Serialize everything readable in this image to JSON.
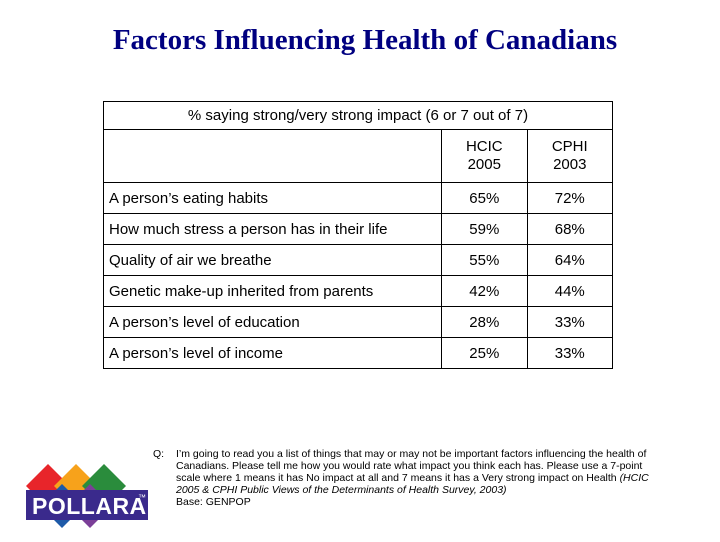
{
  "title": "Factors Influencing Health of Canadians",
  "table": {
    "caption": "% saying strong/very strong impact (6 or 7 out of 7)",
    "columns": [
      {
        "line1": "HCIC",
        "line2": "2005"
      },
      {
        "line1": "CPHI",
        "line2": "2003"
      }
    ],
    "rows": [
      {
        "label": "A person’s eating habits",
        "hcic": "65%",
        "cphi": "72%"
      },
      {
        "label": "How much stress a person has in their life",
        "hcic": "59%",
        "cphi": "68%"
      },
      {
        "label": "Quality of air we breathe",
        "hcic": "55%",
        "cphi": "64%"
      },
      {
        "label": "Genetic make-up inherited from parents",
        "hcic": "42%",
        "cphi": "44%"
      },
      {
        "label": "A person’s level of education",
        "hcic": "28%",
        "cphi": "33%"
      },
      {
        "label": "A person’s level of income",
        "hcic": "25%",
        "cphi": "33%"
      }
    ]
  },
  "footnote": {
    "q_label": "Q:",
    "text": "I’m going to read you a list of things that may or may not be important factors influencing the health of Canadians.  Please tell me how you would rate what impact you think each has.  Please use a 7-point scale where 1 means it has No impact at all and 7 means it has a Very strong impact on Health ",
    "source": "(HCIC 2005 & CPHI Public Views of the Determinants of Health Survey, 2003)",
    "base": "Base: GENPOP"
  },
  "logo": {
    "text": "POLLARA",
    "tm": "™",
    "colors": [
      "#e8252a",
      "#f7a21b",
      "#2a8c3c",
      "#1e5aa8",
      "#7b3f98"
    ]
  }
}
